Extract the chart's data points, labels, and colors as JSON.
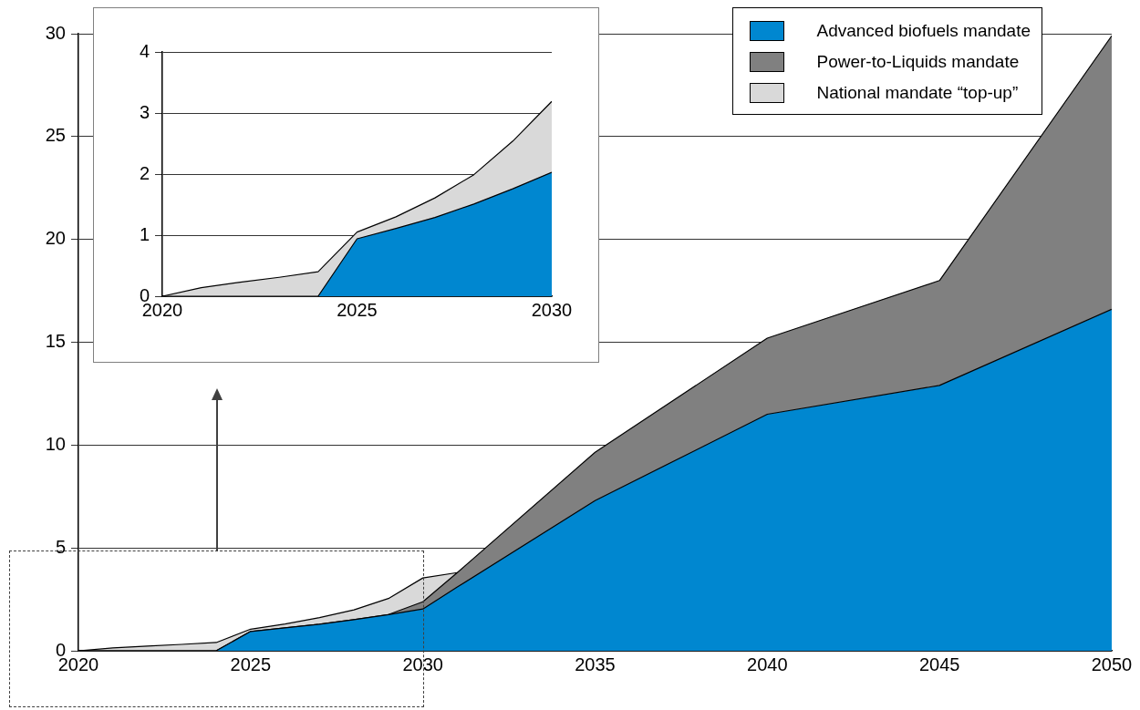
{
  "chart_data": [
    {
      "type": "area",
      "stacked": true,
      "x": [
        2020,
        2021,
        2022,
        2023,
        2024,
        2025,
        2026,
        2027,
        2028,
        2029,
        2030,
        2031,
        2035,
        2040,
        2045,
        2050
      ],
      "series": [
        {
          "name": "Advanced biofuels mandate",
          "color": "#0087d0",
          "values": [
            0,
            0,
            0,
            0,
            0,
            0.94,
            1.11,
            1.29,
            1.51,
            1.76,
            2.03,
            3.1,
            7.3,
            11.5,
            12.9,
            16.6
          ]
        },
        {
          "name": "Power-to-Liquids mandate",
          "color": "#808080",
          "values": [
            0,
            0,
            0,
            0,
            0,
            0,
            0,
            0,
            0,
            0,
            0.35,
            0.7,
            2.35,
            3.7,
            5.1,
            13.3
          ]
        },
        {
          "name": "National mandate “top-up”",
          "color": "#d9d9d9",
          "values": [
            0,
            0.14,
            0.23,
            0.31,
            0.4,
            0.11,
            0.19,
            0.32,
            0.48,
            0.78,
            1.16,
            0,
            null,
            null,
            null,
            null
          ]
        }
      ],
      "xlim": [
        2020,
        2050
      ],
      "xticks": [
        2020,
        2025,
        2030,
        2035,
        2040,
        2045,
        2050
      ],
      "ylim": [
        0,
        30
      ],
      "yticks": [
        0,
        5,
        10,
        15,
        20,
        25,
        30
      ],
      "grid": "y",
      "legend": "top right"
    },
    {
      "type": "area",
      "stacked": true,
      "x": [
        2020,
        2021,
        2022,
        2023,
        2024,
        2025,
        2026,
        2027,
        2028,
        2029,
        2030
      ],
      "series": [
        {
          "color": "#0087d0",
          "values": [
            0,
            0,
            0,
            0,
            0,
            0.94,
            1.11,
            1.29,
            1.51,
            1.76,
            2.03
          ]
        },
        {
          "color": "#d9d9d9",
          "values": [
            0,
            0.14,
            0.23,
            0.31,
            0.4,
            0.11,
            0.19,
            0.32,
            0.48,
            0.78,
            1.16
          ]
        }
      ],
      "xlim": [
        2020,
        2030
      ],
      "xticks": [
        2020,
        2025,
        2030
      ],
      "ylim": [
        0,
        4
      ],
      "yticks": [
        0,
        1,
        2,
        3,
        4
      ],
      "grid": "y"
    }
  ]
}
